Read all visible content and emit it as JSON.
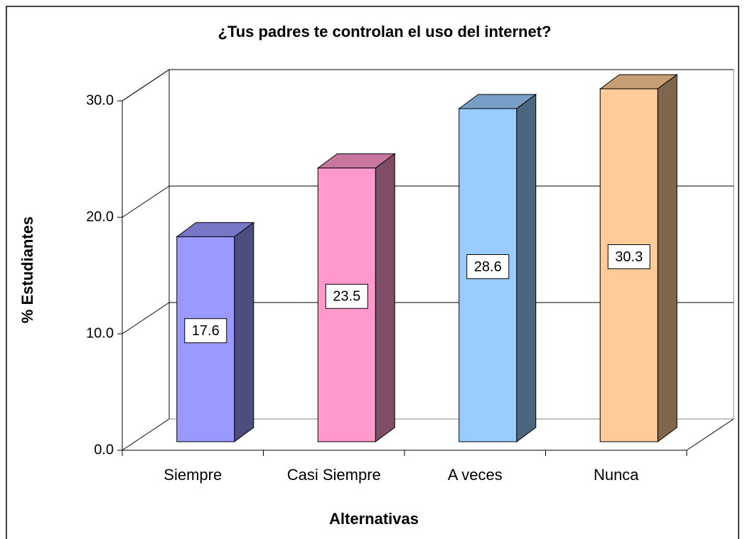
{
  "chart_data": {
    "type": "bar3d",
    "title": "¿Tus padres te controlan el uso del internet?",
    "x_label": "Alternativas",
    "y_label": "% Estudiantes",
    "categories": [
      "Siempre",
      "Casi Siempre",
      "A veces",
      "Nunca"
    ],
    "values": [
      17.6,
      23.5,
      28.6,
      30.3
    ],
    "colors": [
      "#9999ff",
      "#ff99cc",
      "#99ccff",
      "#ffcc99"
    ],
    "ylim": [
      0,
      30
    ],
    "yticks": [
      {
        "value": 0,
        "label": "0.0"
      },
      {
        "value": 10,
        "label": "10.0"
      },
      {
        "value": 20,
        "label": "20.0"
      },
      {
        "value": 30,
        "label": "30.0"
      }
    ],
    "grid": true
  }
}
